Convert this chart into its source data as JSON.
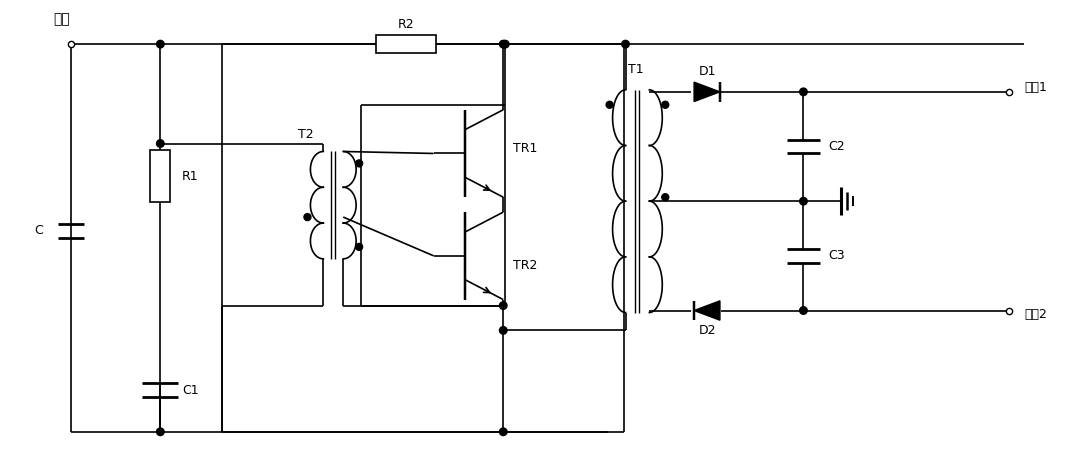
{
  "bg_color": "#ffffff",
  "line_color": "#000000",
  "lw": 1.2,
  "labels": {
    "input": "输入",
    "output1": "输出1",
    "output2": "输出2",
    "C": "C",
    "R1": "R1",
    "C1": "C1",
    "R2": "R2",
    "T2": "T2",
    "TR1": "TR1",
    "TR2": "TR2",
    "T1": "T1",
    "D1": "D1",
    "D2": "D2",
    "C2": "C2",
    "C3": "C3"
  }
}
